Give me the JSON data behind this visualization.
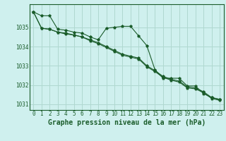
{
  "background_color": "#cff0ee",
  "grid_color": "#b0d8d0",
  "line_color": "#1a5c2a",
  "xlabel": "Graphe pression niveau de la mer (hPa)",
  "xlabel_fontsize": 7,
  "tick_fontsize": 5.5,
  "ylim": [
    1030.7,
    1036.2
  ],
  "xlim": [
    -0.5,
    23.5
  ],
  "yticks": [
    1031,
    1032,
    1033,
    1034,
    1035
  ],
  "xticks": [
    0,
    1,
    2,
    3,
    4,
    5,
    6,
    7,
    8,
    9,
    10,
    11,
    12,
    13,
    14,
    15,
    16,
    17,
    18,
    19,
    20,
    21,
    22,
    23
  ],
  "series1": [
    1035.8,
    1035.6,
    1035.6,
    1034.9,
    1034.85,
    1034.75,
    1034.7,
    1034.5,
    1034.35,
    1034.95,
    1035.0,
    1035.05,
    1035.05,
    1034.55,
    1034.05,
    1032.8,
    1032.35,
    1032.35,
    1032.35,
    1031.95,
    1031.95,
    1031.55,
    1031.35,
    1031.25
  ],
  "series2": [
    1035.8,
    1034.95,
    1034.9,
    1034.75,
    1034.7,
    1034.6,
    1034.5,
    1034.35,
    1034.2,
    1034.0,
    1033.8,
    1033.6,
    1033.5,
    1033.4,
    1033.0,
    1032.75,
    1032.45,
    1032.3,
    1032.2,
    1031.9,
    1031.85,
    1031.65,
    1031.35,
    1031.25
  ],
  "series3": [
    1035.8,
    1034.95,
    1034.9,
    1034.75,
    1034.65,
    1034.6,
    1034.5,
    1034.3,
    1034.15,
    1033.95,
    1033.75,
    1033.55,
    1033.45,
    1033.35,
    1032.95,
    1032.7,
    1032.4,
    1032.25,
    1032.15,
    1031.85,
    1031.8,
    1031.6,
    1031.3,
    1031.2
  ]
}
